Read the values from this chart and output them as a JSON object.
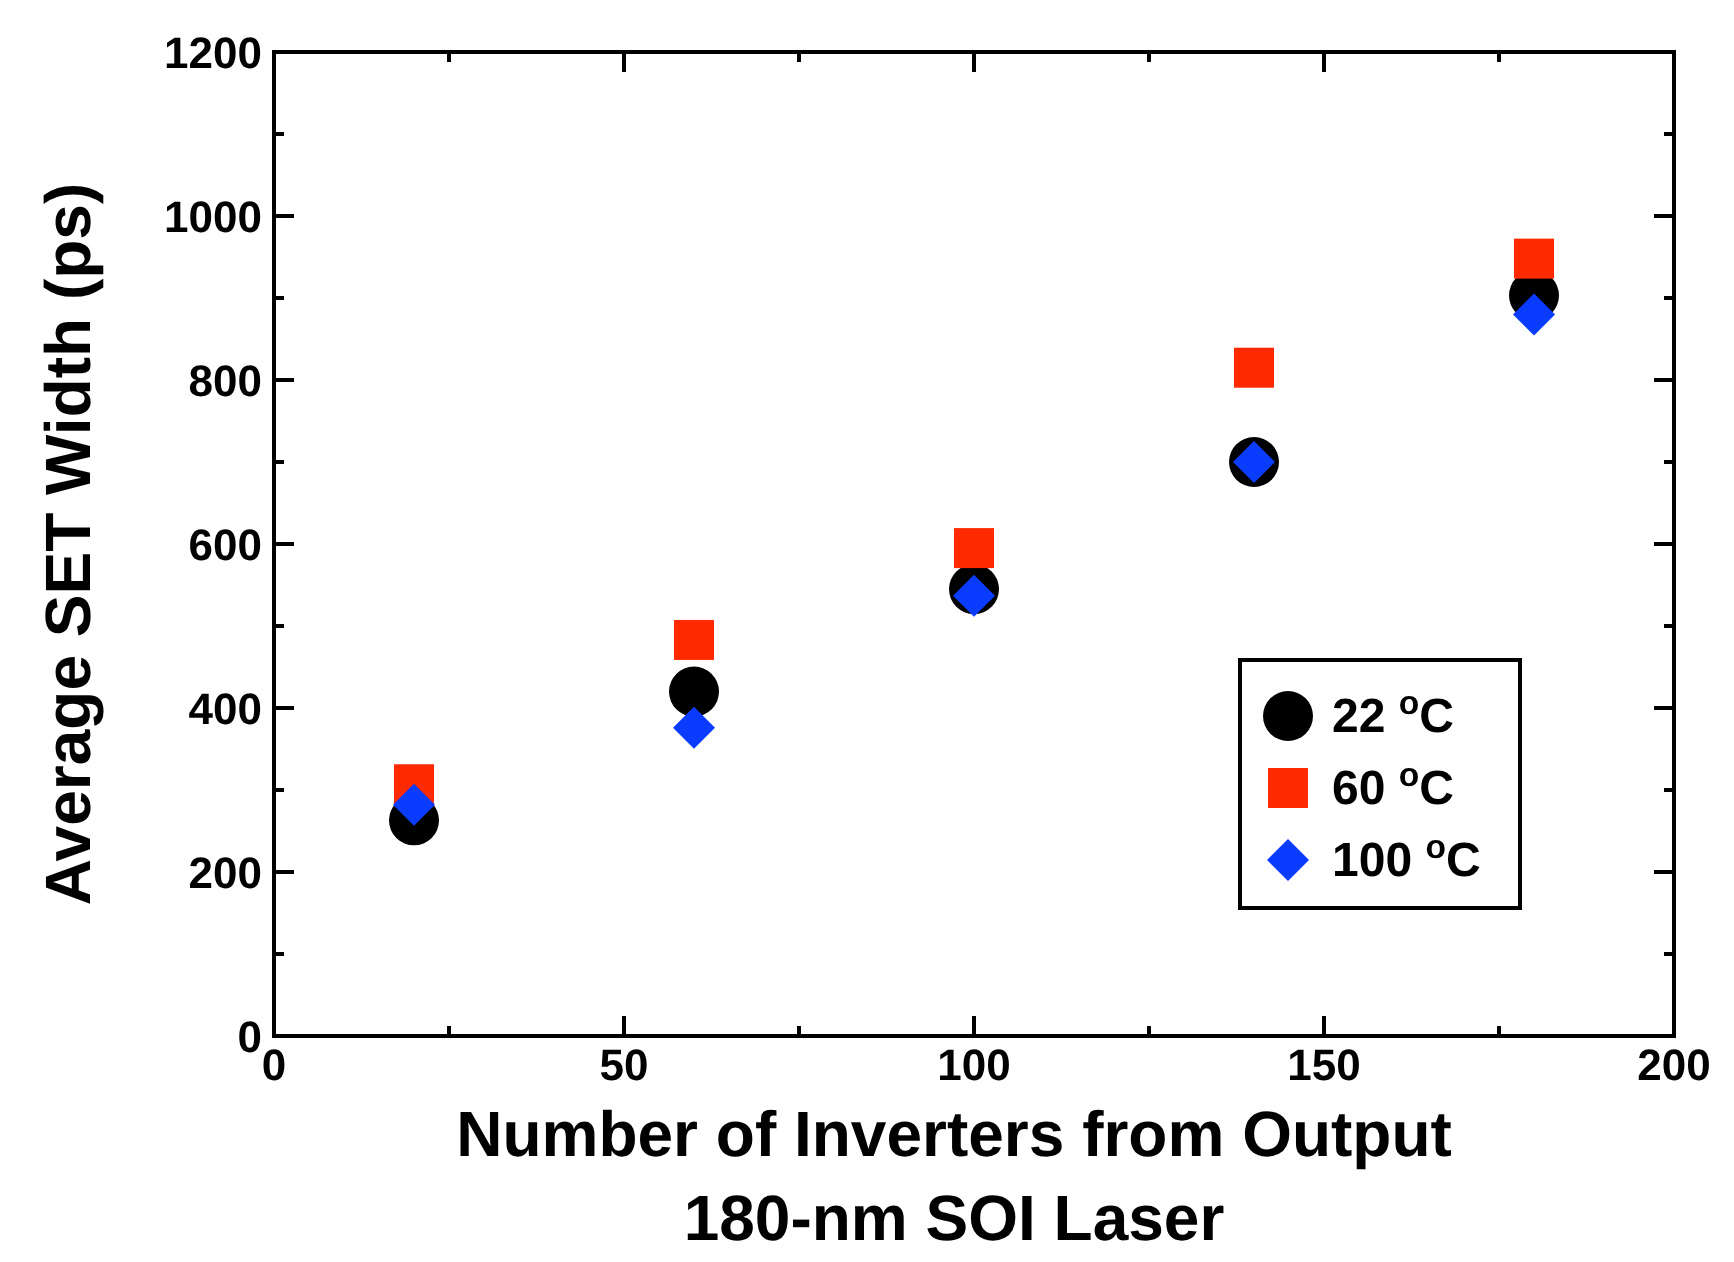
{
  "chart_data": {
    "type": "scatter",
    "xlabel": "Number of Inverters from Output",
    "ylabel": "Average SET Width (ps)",
    "annotations": [
      "180-nm SOI Laser"
    ],
    "x": [
      20,
      60,
      100,
      140,
      180
    ],
    "series": [
      {
        "name": "22 $^{o}$C",
        "color": "#000000",
        "marker": "circle",
        "values": [
          263,
          420,
          545,
          700,
          903
        ]
      },
      {
        "name": "60 $^{o}$C",
        "color": "#ff2a00",
        "marker": "square",
        "values": [
          307,
          483,
          595,
          815,
          948
        ]
      },
      {
        "name": "100 $^{o}$C",
        "color": "#0a3cff",
        "marker": "diamond",
        "values": [
          282,
          376,
          537,
          700,
          880
        ]
      }
    ],
    "xlim": [
      0,
      200
    ],
    "xticks": [
      0,
      50,
      100,
      150,
      200
    ],
    "ylim": [
      0,
      1200
    ],
    "yticks": [
      0,
      200,
      400,
      600,
      800,
      1000,
      1200
    ],
    "grid": false,
    "legend": "bottom right"
  }
}
